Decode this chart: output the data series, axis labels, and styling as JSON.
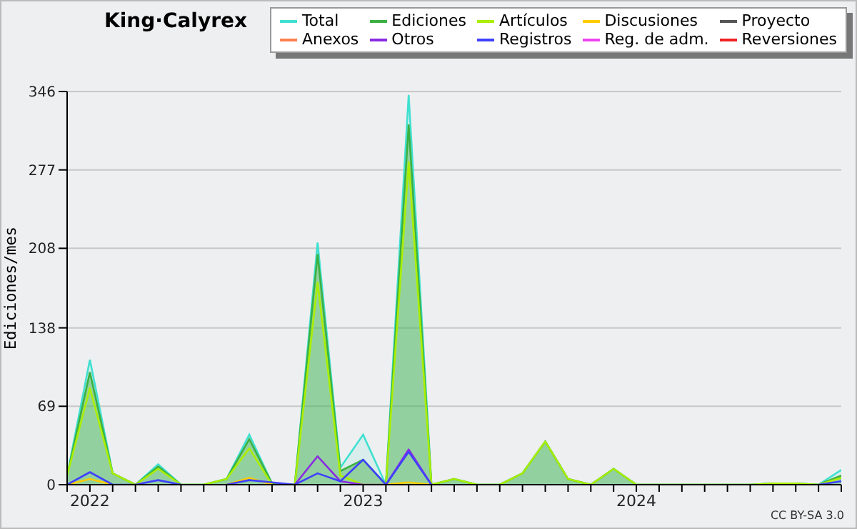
{
  "chart_data": {
    "type": "line",
    "title": "King·Calyrex",
    "ylabel": "Ediciones/mes",
    "annotations": [
      "CC BY-SA 3.0"
    ],
    "x": [
      "2021-12",
      "2022-01",
      "2022-02",
      "2022-03",
      "2022-04",
      "2022-05",
      "2022-06",
      "2022-07",
      "2022-08",
      "2022-09",
      "2022-10",
      "2022-11",
      "2022-12",
      "2023-01",
      "2023-02",
      "2023-03",
      "2023-04",
      "2023-05",
      "2023-06",
      "2023-07",
      "2023-08",
      "2023-09",
      "2023-10",
      "2023-11",
      "2023-12",
      "2024-01",
      "2024-02",
      "2024-03",
      "2024-04",
      "2024-05",
      "2024-06",
      "2024-07",
      "2024-08",
      "2024-09",
      "2024-10"
    ],
    "xlim": [
      "2021-12",
      "2024-10"
    ],
    "xticks": [
      {
        "value": "2021-12",
        "label": null
      },
      {
        "value": "2022-01",
        "label": "2022"
      },
      {
        "value": "2022-02",
        "label": null
      },
      {
        "value": "2022-03",
        "label": null
      },
      {
        "value": "2022-04",
        "label": null
      },
      {
        "value": "2022-05",
        "label": null
      },
      {
        "value": "2022-06",
        "label": null
      },
      {
        "value": "2022-07",
        "label": null
      },
      {
        "value": "2022-08",
        "label": null
      },
      {
        "value": "2022-09",
        "label": null
      },
      {
        "value": "2022-10",
        "label": null
      },
      {
        "value": "2022-11",
        "label": null
      },
      {
        "value": "2022-12",
        "label": null
      },
      {
        "value": "2023-01",
        "label": "2023"
      },
      {
        "value": "2023-02",
        "label": null
      },
      {
        "value": "2023-03",
        "label": null
      },
      {
        "value": "2023-04",
        "label": null
      },
      {
        "value": "2023-05",
        "label": null
      },
      {
        "value": "2023-06",
        "label": null
      },
      {
        "value": "2023-07",
        "label": null
      },
      {
        "value": "2023-08",
        "label": null
      },
      {
        "value": "2023-09",
        "label": null
      },
      {
        "value": "2023-10",
        "label": null
      },
      {
        "value": "2023-11",
        "label": null
      },
      {
        "value": "2023-12",
        "label": null
      },
      {
        "value": "2024-01",
        "label": "2024"
      },
      {
        "value": "2024-02",
        "label": null
      },
      {
        "value": "2024-03",
        "label": null
      },
      {
        "value": "2024-04",
        "label": null
      },
      {
        "value": "2024-05",
        "label": null
      },
      {
        "value": "2024-06",
        "label": null
      },
      {
        "value": "2024-07",
        "label": null
      },
      {
        "value": "2024-08",
        "label": null
      },
      {
        "value": "2024-09",
        "label": null
      },
      {
        "value": "2024-10",
        "label": null
      }
    ],
    "ylim": [
      0,
      346
    ],
    "yticks": [
      0,
      69,
      138,
      208,
      277,
      346
    ],
    "grid": "y",
    "legend": "top right",
    "series": [
      {
        "name": "Total",
        "type": "area",
        "color": "#40e0d0",
        "values": [
          8,
          110,
          10,
          0,
          18,
          0,
          0,
          5,
          44,
          1,
          0,
          213,
          15,
          44,
          0,
          343,
          0,
          5,
          0,
          0,
          10,
          38,
          5,
          0,
          14,
          0,
          0,
          0,
          0,
          0,
          0,
          1,
          1,
          0,
          13
        ]
      },
      {
        "name": "Ediciones",
        "type": "area",
        "color": "#3cb043",
        "values": [
          8,
          99,
          10,
          0,
          16,
          0,
          0,
          5,
          40,
          1,
          0,
          203,
          12,
          22,
          0,
          317,
          0,
          5,
          0,
          0,
          10,
          38,
          5,
          0,
          14,
          0,
          0,
          0,
          0,
          0,
          0,
          1,
          1,
          0,
          8
        ]
      },
      {
        "name": "Artículos",
        "color": "#aaee00",
        "values": [
          8,
          85,
          10,
          0,
          14,
          0,
          0,
          5,
          32,
          0,
          0,
          178,
          8,
          0,
          0,
          284,
          0,
          5,
          0,
          0,
          10,
          38,
          5,
          0,
          14,
          0,
          0,
          0,
          0,
          0,
          0,
          1,
          1,
          0,
          6
        ]
      },
      {
        "name": "Discusiones",
        "color": "#ffcc00",
        "values": [
          0,
          5,
          0,
          null,
          null,
          null,
          null,
          0,
          6,
          0,
          null,
          null,
          null,
          null,
          0,
          2,
          0,
          null,
          null,
          null,
          null,
          null,
          null,
          null,
          null,
          null,
          null,
          null,
          null,
          null,
          null,
          null,
          null,
          null,
          null
        ]
      },
      {
        "name": "Proyecto",
        "color": "#555555",
        "values": [
          null,
          null,
          null,
          null,
          null,
          null,
          null,
          null,
          null,
          null,
          null,
          null,
          null,
          null,
          null,
          null,
          null,
          null,
          null,
          null,
          null,
          null,
          null,
          null,
          null,
          null,
          null,
          null,
          null,
          null,
          null,
          null,
          null,
          null,
          null
        ]
      },
      {
        "name": "Anexos",
        "color": "#ff7f50",
        "values": [
          null,
          null,
          null,
          null,
          null,
          null,
          null,
          null,
          null,
          null,
          null,
          null,
          null,
          null,
          null,
          null,
          null,
          null,
          null,
          null,
          null,
          null,
          null,
          null,
          null,
          null,
          null,
          null,
          null,
          null,
          null,
          null,
          null,
          null,
          null
        ]
      },
      {
        "name": "Otros",
        "color": "#8a2be2",
        "values": [
          null,
          null,
          null,
          null,
          null,
          null,
          null,
          null,
          null,
          null,
          0,
          25,
          3,
          0,
          0,
          31,
          0,
          null,
          null,
          null,
          null,
          null,
          null,
          null,
          null,
          null,
          null,
          null,
          null,
          null,
          null,
          null,
          null,
          null,
          null
        ]
      },
      {
        "name": "Registros",
        "color": "#4040ff",
        "values": [
          0,
          11,
          0,
          0,
          4,
          0,
          null,
          0,
          4,
          2,
          0,
          10,
          3,
          22,
          0,
          29,
          0,
          null,
          null,
          null,
          null,
          null,
          null,
          null,
          null,
          null,
          null,
          null,
          null,
          null,
          null,
          null,
          null,
          0,
          3
        ]
      },
      {
        "name": "Reg. de adm.",
        "color": "#ee44ee",
        "values": [
          null,
          null,
          null,
          null,
          null,
          null,
          null,
          null,
          null,
          null,
          null,
          null,
          null,
          null,
          null,
          null,
          null,
          null,
          null,
          null,
          null,
          null,
          null,
          null,
          null,
          null,
          null,
          null,
          null,
          null,
          null,
          null,
          null,
          null,
          null
        ]
      },
      {
        "name": "Reversiones",
        "color": "#ee2222",
        "values": [
          null,
          null,
          null,
          null,
          null,
          null,
          null,
          null,
          null,
          null,
          null,
          null,
          null,
          null,
          null,
          null,
          null,
          null,
          null,
          null,
          null,
          null,
          null,
          null,
          null,
          null,
          null,
          null,
          null,
          null,
          null,
          null,
          null,
          null,
          null
        ]
      }
    ]
  }
}
